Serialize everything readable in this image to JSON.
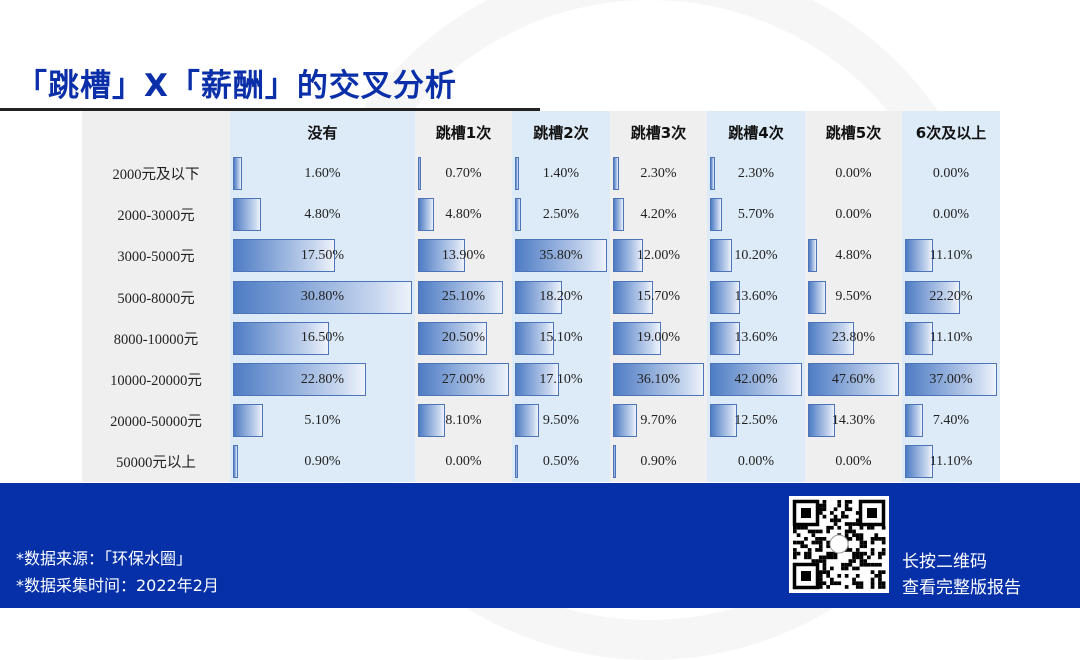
{
  "title": "「跳槽」X「薪酬」的交叉分析",
  "table": {
    "columns": [
      "没有",
      "跳槽1次",
      "跳槽2次",
      "跳槽3次",
      "跳槽4次",
      "跳槽5次",
      "6次及以上"
    ],
    "rows": [
      "2000元及以下",
      "2000-3000元",
      "3000-5000元",
      "5000-8000元",
      "8000-10000元",
      "10000-20000元",
      "20000-50000元",
      "50000元以上"
    ],
    "values": [
      [
        1.6,
        4.8,
        17.5,
        30.8,
        16.5,
        22.8,
        5.1,
        0.9
      ],
      [
        0.7,
        4.8,
        13.9,
        25.1,
        20.5,
        27.0,
        8.1,
        0.0
      ],
      [
        1.4,
        2.5,
        35.8,
        18.2,
        15.1,
        17.1,
        9.5,
        0.5
      ],
      [
        2.3,
        4.2,
        12.0,
        15.7,
        19.0,
        36.1,
        9.7,
        0.9
      ],
      [
        2.3,
        5.7,
        10.2,
        13.6,
        13.6,
        42.0,
        12.5,
        0.0
      ],
      [
        0.0,
        0.0,
        4.8,
        9.5,
        23.8,
        47.6,
        14.3,
        0.0
      ],
      [
        0.0,
        0.0,
        11.1,
        22.2,
        11.1,
        37.0,
        7.4,
        11.1
      ]
    ],
    "bar_color": "#4e7cc4"
  },
  "footer": {
    "source": "*数据来源：「环保水圈」",
    "time": "*数据采集时间：2022年2月",
    "scan_line1": "长按二维码",
    "scan_line2": "查看完整版报告",
    "background": "#0530a8"
  }
}
